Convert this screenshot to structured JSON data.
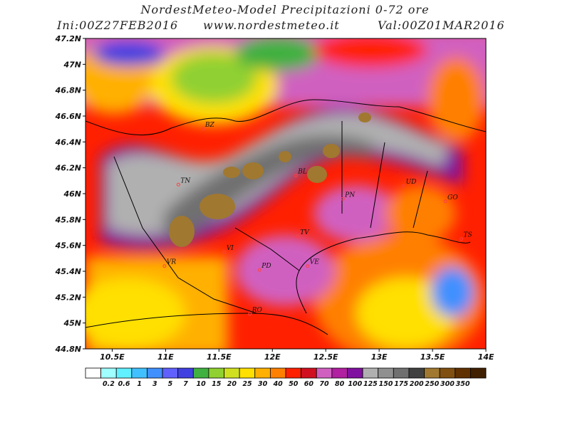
{
  "header": {
    "title": "NordestMeteo-Model Precipitazioni 0-72 ore",
    "init": "Ini:00Z27FEB2016",
    "site": "www.nordestmeteo.it",
    "valid": "Val:00Z01MAR2016"
  },
  "map": {
    "lat_labels": [
      "47.2N",
      "47N",
      "46.8N",
      "46.6N",
      "46.4N",
      "46.2N",
      "46N",
      "45.8N",
      "45.6N",
      "45.4N",
      "45.2N",
      "45N",
      "44.8N"
    ],
    "lon_labels": [
      "10.5E",
      "11E",
      "11.5E",
      "12E",
      "12.5E",
      "13E",
      "13.5E",
      "14E"
    ],
    "cities": [
      {
        "name": "BZ",
        "lon": 11.35,
        "lat": 46.5
      },
      {
        "name": "TN",
        "lon": 11.12,
        "lat": 46.07
      },
      {
        "name": "BL",
        "lon": 12.22,
        "lat": 46.14
      },
      {
        "name": "PN",
        "lon": 12.66,
        "lat": 45.96
      },
      {
        "name": "UD",
        "lon": 13.23,
        "lat": 46.06
      },
      {
        "name": "GO",
        "lon": 13.62,
        "lat": 45.94
      },
      {
        "name": "TV",
        "lon": 12.24,
        "lat": 45.67
      },
      {
        "name": "VI",
        "lon": 11.55,
        "lat": 45.55
      },
      {
        "name": "VR",
        "lon": 10.99,
        "lat": 45.44
      },
      {
        "name": "PD",
        "lon": 11.88,
        "lat": 45.41
      },
      {
        "name": "VE",
        "lon": 12.33,
        "lat": 45.44
      },
      {
        "name": "TS",
        "lon": 13.77,
        "lat": 45.65
      },
      {
        "name": "RO",
        "lon": 11.79,
        "lat": 45.07
      }
    ]
  },
  "legend": {
    "labels": [
      "0.2",
      "0.6",
      "1",
      "3",
      "5",
      "7",
      "10",
      "15",
      "20",
      "25",
      "30",
      "40",
      "50",
      "60",
      "70",
      "80",
      "100",
      "125",
      "150",
      "175",
      "200",
      "250",
      "300",
      "350"
    ],
    "colors": [
      "#ffffff",
      "#a0ffff",
      "#60f0ff",
      "#40c0ff",
      "#4090ff",
      "#6060ff",
      "#4040e0",
      "#40b040",
      "#90d030",
      "#d0e020",
      "#ffe000",
      "#ffb000",
      "#ff8000",
      "#ff2000",
      "#d01020",
      "#d060c0",
      "#b020a0",
      "#8010a0",
      "#b0b0b0",
      "#909090",
      "#707070",
      "#404040",
      "#a07830",
      "#805010",
      "#603000",
      "#402000"
    ]
  }
}
